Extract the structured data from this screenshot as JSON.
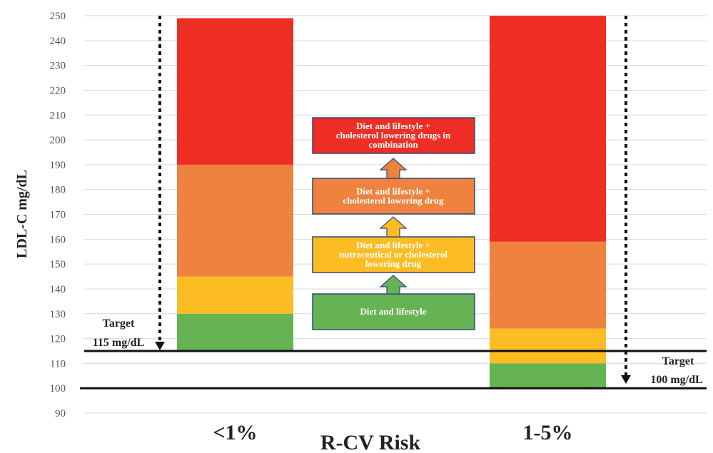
{
  "chart_data": {
    "type": "bar",
    "stacked": true,
    "xlabel": "R-CV Risk",
    "ylabel": "LDL-C mg/dL",
    "ylim": [
      90,
      250
    ],
    "yticks": [
      90,
      100,
      110,
      120,
      130,
      140,
      150,
      160,
      170,
      180,
      190,
      200,
      210,
      220,
      230,
      240,
      250
    ],
    "grid": "horizontal",
    "categories": [
      "<1%",
      "1-5%"
    ],
    "bars": [
      {
        "category": "<1%",
        "segments": [
          {
            "from": 115,
            "to": 130,
            "color": "#66B353"
          },
          {
            "from": 130,
            "to": 145,
            "color": "#FBBD23"
          },
          {
            "from": 145,
            "to": 190,
            "color": "#EE823E"
          },
          {
            "from": 190,
            "to": 249,
            "color": "#EE2E24"
          }
        ]
      },
      {
        "category": "1-5%",
        "segments": [
          {
            "from": 100,
            "to": 110,
            "color": "#66B353"
          },
          {
            "from": 110,
            "to": 124,
            "color": "#FBBD23"
          },
          {
            "from": 124,
            "to": 159,
            "color": "#EE823E"
          },
          {
            "from": 159,
            "to": 250,
            "color": "#EE2E24"
          }
        ]
      }
    ],
    "targets": [
      {
        "value": 115,
        "line1": "Target",
        "line2": "115 mg/dL"
      },
      {
        "value": 100,
        "line1": "Target",
        "line2": "100 mg/dL"
      }
    ],
    "legend_boxes": [
      {
        "lines": [
          "Diet and lifestyle"
        ],
        "color": "#66B353"
      },
      {
        "lines": [
          "Diet and lifestyle +",
          "nutraceutical or cholesterol",
          "lowering drug"
        ],
        "color": "#FBBD23"
      },
      {
        "lines": [
          "Diet and lifestyle +",
          "cholesterol lowering drug"
        ],
        "color": "#EE823E"
      },
      {
        "lines": [
          "Diet and lifestyle +",
          "cholesterol lowering drugs in",
          "combination"
        ],
        "color": "#EE2E24"
      }
    ],
    "colors": {
      "green": "#66B353",
      "yellow": "#FBBD23",
      "orange": "#EE823E",
      "red": "#EE2E24",
      "box_border": "#2F4A7A"
    }
  }
}
